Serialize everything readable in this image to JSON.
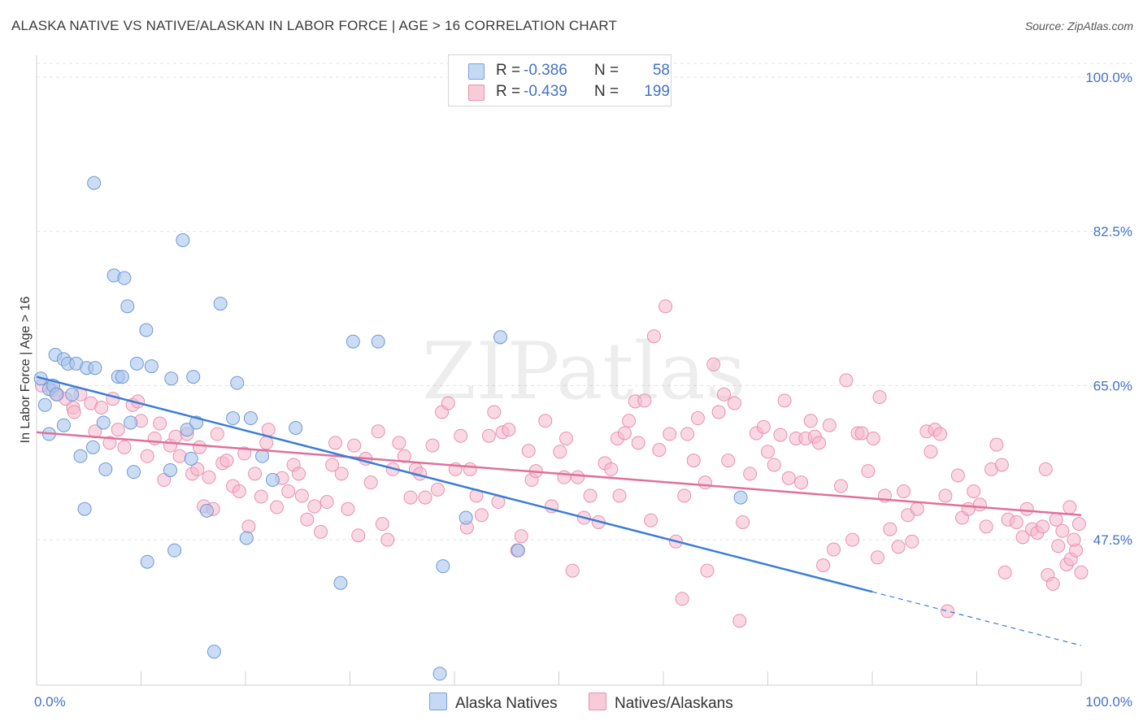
{
  "title": "ALASKA NATIVE VS NATIVE/ALASKAN IN LABOR FORCE | AGE > 16 CORRELATION CHART",
  "source": "Source: ZipAtlas.com",
  "watermark": "ZIPatlas",
  "legend": {
    "rows": [
      {
        "r_label": "R =",
        "r_value": "-0.386",
        "n_label": "N =",
        "n_value": "58"
      },
      {
        "r_label": "R =",
        "r_value": "-0.439",
        "n_label": "N =",
        "n_value": "199"
      }
    ]
  },
  "chart_data": {
    "type": "scatter",
    "title": "ALASKA NATIVE VS NATIVE/ALASKAN IN LABOR FORCE | AGE > 16 CORRELATION CHART",
    "ylabel": "In Labor Force | Age > 16",
    "xlabel": "",
    "xlim": [
      0,
      100
    ],
    "ylim": [
      30,
      100
    ],
    "x_tick_labels": [
      "0.0%",
      "100.0%"
    ],
    "y_ticks": [
      47.5,
      65.0,
      82.5,
      100.0
    ],
    "y_tick_labels": [
      "47.5%",
      "65.0%",
      "82.5%",
      "100.0%"
    ],
    "grid": true,
    "legend_position": "bottom",
    "colors": {
      "alaska_fill": "#a9c6ef",
      "alaska_stroke": "#6f99d3",
      "alaska_line": "#3b7dd8",
      "natives_fill": "#f5b8cc",
      "natives_stroke": "#e891ae",
      "natives_line": "#e0709a",
      "tick_text": "#4472c4",
      "grid": "#e3e3e3"
    },
    "series": [
      {
        "name": "Alaska Natives",
        "trend": {
          "x0": 0,
          "y0": 66.0,
          "x1": 80,
          "y1": 41.6,
          "dash_x1": 100,
          "dash_y1": 35.5
        },
        "points": [
          [
            0.4,
            65.8
          ],
          [
            0.8,
            62.8
          ],
          [
            1.2,
            64.6
          ],
          [
            1.2,
            59.5
          ],
          [
            1.6,
            65.0
          ],
          [
            1.9,
            64.0
          ],
          [
            1.8,
            68.5
          ],
          [
            2.6,
            68.0
          ],
          [
            2.6,
            60.5
          ],
          [
            3.0,
            67.5
          ],
          [
            3.4,
            64.0
          ],
          [
            3.8,
            67.5
          ],
          [
            4.2,
            57.0
          ],
          [
            4.8,
            67.0
          ],
          [
            4.6,
            51.0
          ],
          [
            5.4,
            58.0
          ],
          [
            5.6,
            67.0
          ],
          [
            5.5,
            88.0
          ],
          [
            6.4,
            60.8
          ],
          [
            6.6,
            55.5
          ],
          [
            7.4,
            77.5
          ],
          [
            7.8,
            66.0
          ],
          [
            8.2,
            66.0
          ],
          [
            8.4,
            77.2
          ],
          [
            8.7,
            74.0
          ],
          [
            9.0,
            60.8
          ],
          [
            9.3,
            55.2
          ],
          [
            9.6,
            67.5
          ],
          [
            10.5,
            71.3
          ],
          [
            10.6,
            45.0
          ],
          [
            11.0,
            67.2
          ],
          [
            12.8,
            55.4
          ],
          [
            12.9,
            65.8
          ],
          [
            13.2,
            46.3
          ],
          [
            14.0,
            81.5
          ],
          [
            14.4,
            60.0
          ],
          [
            14.8,
            56.7
          ],
          [
            15.0,
            66.0
          ],
          [
            15.3,
            60.8
          ],
          [
            16.3,
            50.8
          ],
          [
            17.0,
            34.8
          ],
          [
            17.6,
            74.3
          ],
          [
            18.8,
            61.3
          ],
          [
            19.2,
            65.3
          ],
          [
            20.1,
            47.7
          ],
          [
            20.5,
            61.3
          ],
          [
            21.6,
            57.0
          ],
          [
            22.6,
            54.3
          ],
          [
            24.8,
            60.2
          ],
          [
            30.3,
            70.0
          ],
          [
            29.1,
            42.6
          ],
          [
            32.7,
            70.0
          ],
          [
            38.6,
            32.3
          ],
          [
            38.9,
            44.5
          ],
          [
            41.1,
            50.0
          ],
          [
            46.1,
            46.3
          ],
          [
            44.4,
            70.5
          ],
          [
            67.4,
            52.3
          ]
        ]
      },
      {
        "name": "Natives/Alaskans",
        "trend": {
          "x0": 0,
          "y0": 59.7,
          "x1": 100,
          "y1": 50.3
        },
        "points": [
          [
            0.5,
            65.0
          ],
          [
            1.5,
            64.5
          ],
          [
            2.0,
            64.0
          ],
          [
            2.8,
            63.5
          ],
          [
            3.5,
            62.5
          ],
          [
            3.6,
            62.0
          ],
          [
            4.2,
            64.0
          ],
          [
            5.2,
            63.0
          ],
          [
            5.6,
            59.8
          ],
          [
            6.2,
            62.5
          ],
          [
            7.0,
            58.5
          ],
          [
            7.3,
            63.5
          ],
          [
            7.8,
            60.0
          ],
          [
            8.4,
            58.0
          ],
          [
            9.2,
            62.8
          ],
          [
            9.7,
            63.2
          ],
          [
            10.0,
            61.0
          ],
          [
            10.6,
            57.0
          ],
          [
            11.3,
            59.0
          ],
          [
            11.8,
            60.7
          ],
          [
            12.2,
            54.3
          ],
          [
            12.8,
            58.2
          ],
          [
            13.3,
            59.2
          ],
          [
            13.7,
            57.0
          ],
          [
            14.4,
            59.5
          ],
          [
            14.9,
            55.0
          ],
          [
            15.4,
            55.5
          ],
          [
            15.6,
            58.0
          ],
          [
            16.0,
            51.3
          ],
          [
            16.5,
            54.6
          ],
          [
            16.9,
            51.0
          ],
          [
            17.3,
            59.5
          ],
          [
            17.8,
            56.2
          ],
          [
            18.2,
            56.5
          ],
          [
            18.8,
            53.6
          ],
          [
            19.4,
            53.0
          ],
          [
            19.9,
            57.3
          ],
          [
            20.3,
            49.0
          ],
          [
            20.9,
            55.0
          ],
          [
            21.5,
            52.4
          ],
          [
            22.0,
            58.5
          ],
          [
            22.2,
            60.0
          ],
          [
            23.0,
            51.2
          ],
          [
            23.5,
            54.5
          ],
          [
            24.1,
            53.0
          ],
          [
            24.6,
            56.0
          ],
          [
            25.1,
            55.0
          ],
          [
            25.4,
            52.5
          ],
          [
            25.9,
            49.8
          ],
          [
            26.6,
            51.3
          ],
          [
            27.2,
            48.4
          ],
          [
            27.8,
            51.8
          ],
          [
            28.3,
            56.0
          ],
          [
            28.6,
            58.5
          ],
          [
            29.2,
            55.0
          ],
          [
            29.8,
            51.0
          ],
          [
            30.4,
            58.2
          ],
          [
            30.8,
            48.0
          ],
          [
            31.5,
            56.7
          ],
          [
            32.0,
            54.0
          ],
          [
            32.7,
            59.8
          ],
          [
            33.1,
            49.3
          ],
          [
            33.6,
            47.5
          ],
          [
            34.1,
            55.5
          ],
          [
            34.7,
            58.5
          ],
          [
            35.2,
            57.0
          ],
          [
            35.8,
            52.3
          ],
          [
            36.3,
            55.5
          ],
          [
            36.7,
            55.0
          ],
          [
            37.2,
            52.3
          ],
          [
            37.9,
            58.2
          ],
          [
            38.4,
            53.2
          ],
          [
            38.8,
            62.0
          ],
          [
            39.4,
            63.0
          ],
          [
            40.1,
            55.5
          ],
          [
            40.6,
            59.3
          ],
          [
            41.2,
            48.9
          ],
          [
            41.5,
            55.5
          ],
          [
            42.1,
            52.5
          ],
          [
            42.6,
            50.3
          ],
          [
            43.3,
            59.3
          ],
          [
            43.8,
            62.0
          ],
          [
            44.2,
            51.8
          ],
          [
            44.6,
            59.7
          ],
          [
            45.2,
            60.0
          ],
          [
            46.0,
            46.3
          ],
          [
            46.4,
            47.9
          ],
          [
            47.1,
            57.6
          ],
          [
            47.4,
            54.3
          ],
          [
            47.8,
            55.3
          ],
          [
            48.7,
            61.0
          ],
          [
            49.3,
            51.3
          ],
          [
            50.1,
            57.5
          ],
          [
            50.5,
            54.6
          ],
          [
            50.7,
            59.0
          ],
          [
            51.3,
            44.0
          ],
          [
            51.8,
            54.6
          ],
          [
            52.4,
            50.0
          ],
          [
            53.0,
            52.5
          ],
          [
            53.8,
            49.5
          ],
          [
            54.4,
            56.2
          ],
          [
            55.0,
            55.5
          ],
          [
            55.6,
            59.0
          ],
          [
            55.8,
            52.5
          ],
          [
            56.3,
            59.6
          ],
          [
            56.7,
            61.0
          ],
          [
            57.3,
            63.2
          ],
          [
            57.6,
            58.5
          ],
          [
            58.2,
            63.3
          ],
          [
            58.8,
            49.7
          ],
          [
            59.1,
            70.6
          ],
          [
            59.6,
            57.7
          ],
          [
            60.2,
            74.0
          ],
          [
            60.6,
            59.5
          ],
          [
            61.2,
            47.3
          ],
          [
            61.8,
            40.8
          ],
          [
            62.0,
            52.5
          ],
          [
            62.3,
            59.5
          ],
          [
            62.9,
            56.5
          ],
          [
            63.3,
            61.3
          ],
          [
            64.0,
            54.0
          ],
          [
            64.2,
            44.0
          ],
          [
            64.8,
            67.4
          ],
          [
            65.3,
            62.0
          ],
          [
            65.8,
            64.0
          ],
          [
            66.2,
            56.5
          ],
          [
            66.8,
            63.0
          ],
          [
            67.3,
            38.3
          ],
          [
            67.6,
            49.5
          ],
          [
            68.3,
            55.0
          ],
          [
            68.9,
            59.6
          ],
          [
            69.6,
            60.3
          ],
          [
            70.0,
            57.5
          ],
          [
            70.6,
            56.0
          ],
          [
            71.2,
            59.4
          ],
          [
            71.6,
            63.3
          ],
          [
            72.0,
            54.5
          ],
          [
            72.7,
            59.0
          ],
          [
            73.2,
            54.0
          ],
          [
            73.6,
            59.0
          ],
          [
            74.1,
            61.0
          ],
          [
            74.5,
            59.2
          ],
          [
            74.9,
            58.5
          ],
          [
            75.3,
            44.6
          ],
          [
            75.9,
            60.5
          ],
          [
            76.3,
            46.4
          ],
          [
            77.0,
            53.6
          ],
          [
            77.5,
            65.6
          ],
          [
            78.1,
            47.5
          ],
          [
            78.6,
            59.6
          ],
          [
            79.0,
            59.6
          ],
          [
            79.6,
            55.3
          ],
          [
            80.1,
            59.0
          ],
          [
            80.5,
            45.5
          ],
          [
            80.7,
            63.7
          ],
          [
            81.2,
            52.5
          ],
          [
            81.7,
            48.7
          ],
          [
            82.5,
            46.7
          ],
          [
            83.0,
            53.0
          ],
          [
            83.4,
            50.3
          ],
          [
            83.8,
            47.3
          ],
          [
            84.3,
            51.0
          ],
          [
            85.2,
            59.8
          ],
          [
            85.6,
            57.5
          ],
          [
            86.0,
            60.0
          ],
          [
            86.5,
            59.5
          ],
          [
            87.0,
            52.5
          ],
          [
            87.2,
            39.4
          ],
          [
            88.2,
            54.8
          ],
          [
            88.6,
            50.0
          ],
          [
            89.2,
            51.0
          ],
          [
            89.7,
            53.0
          ],
          [
            90.3,
            51.5
          ],
          [
            90.9,
            49.0
          ],
          [
            91.4,
            55.5
          ],
          [
            91.9,
            58.3
          ],
          [
            92.4,
            56.0
          ],
          [
            92.7,
            43.8
          ],
          [
            93.0,
            49.8
          ],
          [
            93.8,
            49.5
          ],
          [
            94.4,
            47.8
          ],
          [
            94.8,
            51.0
          ],
          [
            95.3,
            48.7
          ],
          [
            95.8,
            48.3
          ],
          [
            96.3,
            49.0
          ],
          [
            96.8,
            43.5
          ],
          [
            97.3,
            42.5
          ],
          [
            97.8,
            46.8
          ],
          [
            98.2,
            48.5
          ],
          [
            98.6,
            44.7
          ],
          [
            99.0,
            45.3
          ],
          [
            99.5,
            46.3
          ],
          [
            100.0,
            43.8
          ],
          [
            99.8,
            49.3
          ],
          [
            99.3,
            47.5
          ],
          [
            98.9,
            51.2
          ],
          [
            97.6,
            49.8
          ],
          [
            96.6,
            55.5
          ]
        ]
      }
    ]
  }
}
